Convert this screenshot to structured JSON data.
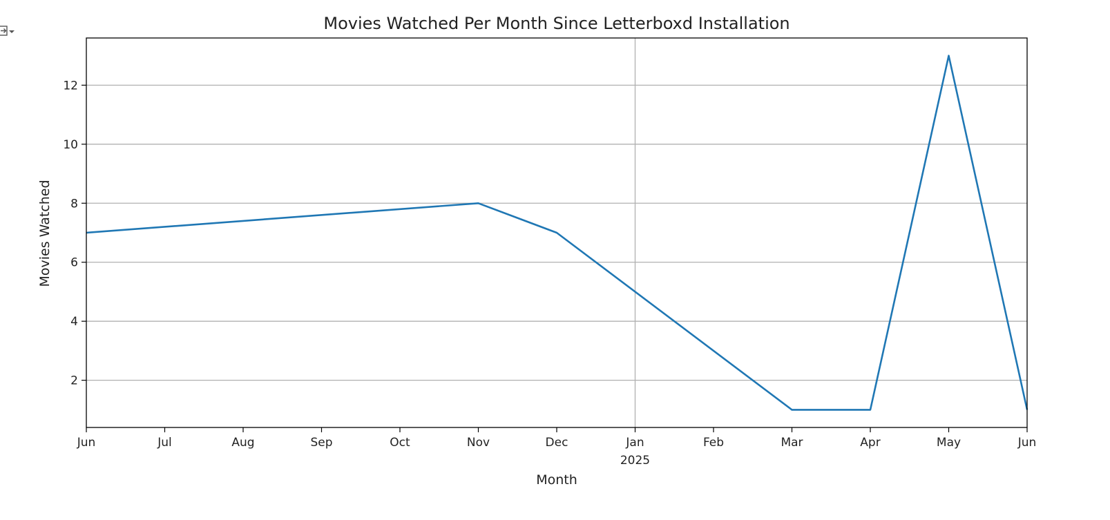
{
  "output_icon": "output-toggle-icon",
  "chart_data": {
    "type": "line",
    "title": "Movies Watched Per Month Since Letterboxd Installation",
    "xlabel": "Month",
    "ylabel": "Movies Watched",
    "x": [
      "2024-06",
      "2024-11",
      "2024-12",
      "2025-03",
      "2025-04",
      "2025-05",
      "2025-06"
    ],
    "series": [
      {
        "values": [
          7,
          8,
          7,
          1,
          1,
          13,
          1
        ],
        "color": "#1f77b4"
      }
    ],
    "x_ticks": [
      "Jun",
      "Jul",
      "Aug",
      "Sep",
      "Oct",
      "Nov",
      "Dec",
      "Jan",
      "Feb",
      "Mar",
      "Apr",
      "May",
      "Jun"
    ],
    "x_tick_sublabel": {
      "tick": "Jan",
      "text": "2025"
    },
    "xlim": [
      "2024-06",
      "2025-06"
    ],
    "y_ticks": [
      2,
      4,
      6,
      8,
      10,
      12
    ],
    "ylim": [
      0.4,
      13.6
    ],
    "grid": true
  }
}
